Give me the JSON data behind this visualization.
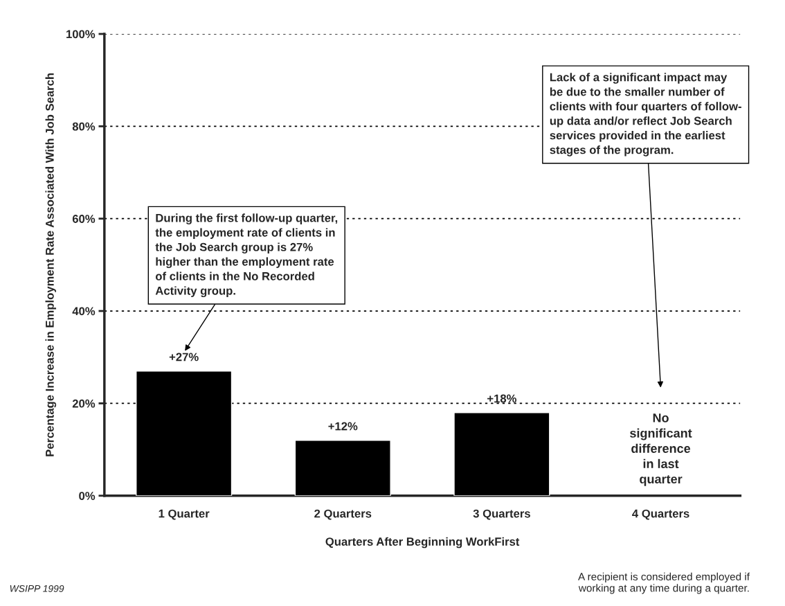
{
  "chart_data": {
    "type": "bar",
    "xlabel": "Quarters After Beginning WorkFirst",
    "ylabel": "Percentage Increase in Employment Rate Associated With Job Search",
    "categories": [
      "1 Quarter",
      "2 Quarters",
      "3 Quarters",
      "4 Quarters"
    ],
    "values": [
      27,
      12,
      18,
      null
    ],
    "value_labels": [
      "+27%",
      "+12%",
      "+18%",
      null
    ],
    "color": "#000000",
    "ylim": [
      0,
      100
    ],
    "yticks": [
      {
        "value": 0,
        "label": "0%"
      },
      {
        "value": 20,
        "label": "20%"
      },
      {
        "value": 40,
        "label": "40%"
      },
      {
        "value": 60,
        "label": "60%"
      },
      {
        "value": 80,
        "label": "80%"
      },
      {
        "value": 100,
        "label": "100%"
      }
    ],
    "grid": "y",
    "annotations": [
      "During the first follow-up quarter,\nthe employment rate of clients in\nthe Job Search group is 27%\nhigher than the employment rate\nof clients in the No Recorded\nActivity group.",
      "Lack of a significant impact may\nbe due to the smaller number of\nclients with four quarters of follow-\nup data and/or reflect Job Search\nservices provided in the earliest\nstages of the program.",
      "No\nsignificant\ndifference\nin last\nquarter",
      "WSIPP 1999",
      "A recipient is considered employed if\nworking at any time during a quarter."
    ]
  }
}
